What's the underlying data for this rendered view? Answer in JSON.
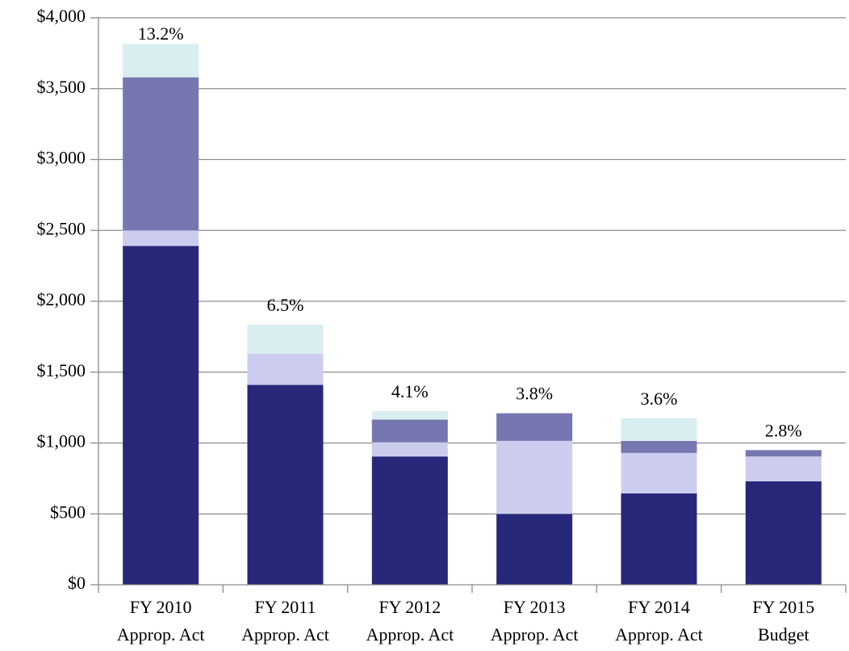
{
  "chart_data": {
    "type": "stacked_bar",
    "categories": [
      [
        "FY 2010",
        "Approp. Act"
      ],
      [
        "FY 2011",
        "Approp. Act"
      ],
      [
        "FY 2012",
        "Approp. Act"
      ],
      [
        "FY 2013",
        "Approp. Act"
      ],
      [
        "FY 2014",
        "Approp. Act"
      ],
      [
        "FY 2015",
        "Budget"
      ]
    ],
    "series": [
      {
        "color": "#27287a",
        "values": [
          2390,
          1410,
          905,
          500,
          645,
          730
        ]
      },
      {
        "color": "#cccdee",
        "values": [
          110,
          220,
          100,
          515,
          285,
          175
        ]
      },
      {
        "color": "#7677b0",
        "values": [
          1080,
          0,
          160,
          195,
          85,
          45
        ]
      },
      {
        "color": "#d9eef0",
        "values": [
          235,
          205,
          60,
          0,
          160,
          0
        ]
      }
    ],
    "annotations": [
      "13.2%",
      "6.5%",
      "4.1%",
      "3.8%",
      "3.6%",
      "2.8%"
    ],
    "ylim": [
      0,
      4000
    ],
    "yticks": [
      {
        "value": 0,
        "label": "$0"
      },
      {
        "value": 500,
        "label": "$500"
      },
      {
        "value": 1000,
        "label": "$1,000"
      },
      {
        "value": 1500,
        "label": "$1,500"
      },
      {
        "value": 2000,
        "label": "$2,000"
      },
      {
        "value": 2500,
        "label": "$2,500"
      },
      {
        "value": 3000,
        "label": "$3,000"
      },
      {
        "value": 3500,
        "label": "$3,500"
      },
      {
        "value": 4000,
        "label": "$4,000"
      }
    ],
    "grid": true
  }
}
